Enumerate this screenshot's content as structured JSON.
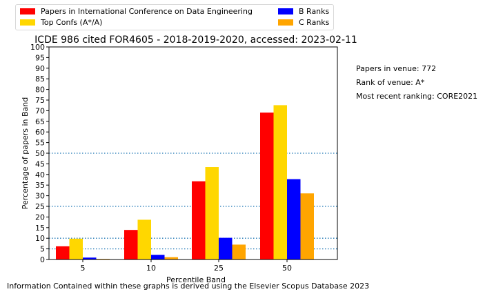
{
  "chart_data": {
    "type": "bar",
    "title": "ICDE 986 cited FOR4605 - 2018-2019-2020, accessed: 2023-02-11",
    "xlabel": "Percentile Band",
    "ylabel": "Percentage of papers in Band",
    "categories": [
      "5",
      "10",
      "25",
      "50"
    ],
    "ylim": [
      0,
      100
    ],
    "yticks": [
      0,
      5,
      10,
      15,
      20,
      25,
      30,
      35,
      40,
      45,
      50,
      55,
      60,
      65,
      70,
      75,
      80,
      85,
      90,
      95,
      100
    ],
    "reference_lines": [
      5,
      10,
      25,
      50
    ],
    "legend_position": "top-left, above plot",
    "series": [
      {
        "name": "Papers in International Conference on Data Engineering",
        "color": "#ff0000",
        "values": [
          6.2,
          13.9,
          36.8,
          69.1
        ]
      },
      {
        "name": "Top Confs (A*/A)",
        "color": "#ffd700",
        "values": [
          9.8,
          18.7,
          43.5,
          72.6
        ]
      },
      {
        "name": "B Ranks",
        "color": "#0000ff",
        "values": [
          0.9,
          2.2,
          10.2,
          37.8
        ]
      },
      {
        "name": "C Ranks",
        "color": "#ffa500",
        "values": [
          0.3,
          1.1,
          7.0,
          31.1
        ]
      }
    ]
  },
  "info": {
    "papers_in_venue": "Papers in venue: 772",
    "rank_of_venue": "Rank of venue: A*",
    "most_recent_ranking": "Most recent ranking: CORE2021"
  },
  "footer": "Information Contained within these graphs is derived using the Elsevier Scopus Database 2023"
}
